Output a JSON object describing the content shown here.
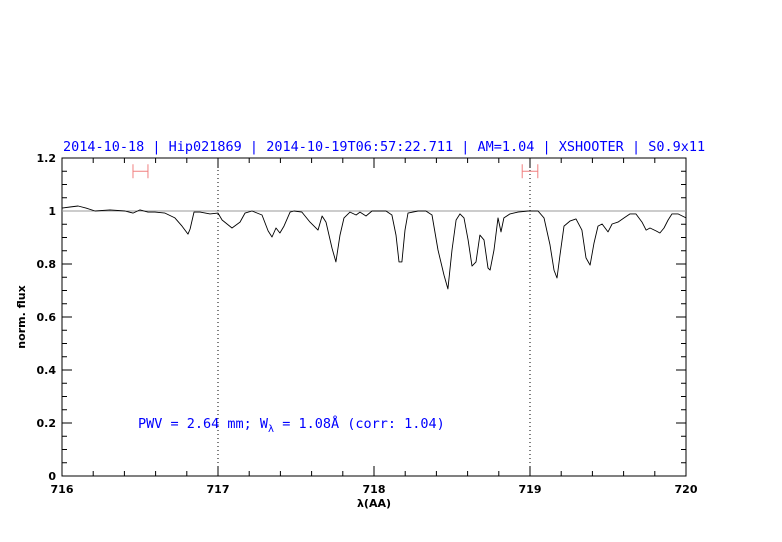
{
  "chart_data": {
    "type": "line",
    "title": "2014-10-18 | Hip021869 | 2014-10-19T06:57:22.711 | AM=1.04 | XSHOOTER | S0.9x11",
    "xlabel": "λ(AA)",
    "ylabel": "norm. flux",
    "xlim": [
      716,
      720
    ],
    "ylim": [
      0,
      1.2
    ],
    "xticks": [
      716,
      717,
      718,
      719,
      720
    ],
    "xtick_labels": [
      "716",
      "717",
      "718",
      "719",
      "720"
    ],
    "yticks": [
      0,
      0.2,
      0.4,
      0.6,
      0.8,
      1,
      1.2
    ],
    "ytick_labels": [
      "0",
      "0.2",
      "0.4",
      "0.6",
      "0.8",
      "1",
      "1.2"
    ],
    "grid": false,
    "reference_line": {
      "y": 1.0,
      "color": "#e07070"
    },
    "dotted_verticals": [
      717,
      719
    ],
    "error_bars": [
      {
        "x_from": 716.455,
        "x_to": 716.551,
        "y": 1.15
      },
      {
        "x_from": 718.95,
        "x_to": 719.05,
        "y": 1.15
      }
    ],
    "annotation": {
      "prefix": "PWV = 2.64 mm; W",
      "subscript": "λ",
      "suffix": " = 1.08Å (corr: 1.04)"
    },
    "colors": {
      "spectrum": "#000000",
      "text": "#0000ff",
      "error_bar": "#f08080"
    },
    "series": [
      {
        "x": [
          716.0,
          716.051,
          716.103,
          716.154,
          716.212,
          716.308,
          716.404,
          716.455,
          716.5,
          716.551,
          716.596,
          716.66,
          716.724,
          716.769,
          716.808,
          716.821,
          716.846,
          716.885,
          716.949,
          717.0,
          717.026,
          717.09,
          717.141,
          717.173,
          717.218,
          717.282,
          717.321,
          717.346,
          717.372,
          717.397,
          717.423,
          717.462,
          717.487,
          717.538,
          717.59,
          717.641,
          717.667,
          717.692,
          717.731,
          717.756,
          717.782,
          717.808,
          717.846,
          717.885,
          717.91,
          717.949,
          717.987,
          718.038,
          718.077,
          718.115,
          718.141,
          718.16,
          718.179,
          718.199,
          718.218,
          718.282,
          718.333,
          718.372,
          718.41,
          718.449,
          718.474,
          718.5,
          718.526,
          718.551,
          718.577,
          718.603,
          718.628,
          718.654,
          718.679,
          718.705,
          718.731,
          718.744,
          718.769,
          718.795,
          718.814,
          718.833,
          718.872,
          718.923,
          718.987,
          719.051,
          719.09,
          719.128,
          719.154,
          719.173,
          719.192,
          719.218,
          719.256,
          719.295,
          719.333,
          719.359,
          719.385,
          719.41,
          719.436,
          719.462,
          719.5,
          719.526,
          719.564,
          719.603,
          719.641,
          719.679,
          719.718,
          719.744,
          719.769,
          719.808,
          719.833,
          719.859,
          719.885,
          719.91,
          719.949,
          720.0
        ],
        "y": [
          1.011,
          1.015,
          1.019,
          1.011,
          1.0,
          1.004,
          1.0,
          0.992,
          1.004,
          0.996,
          0.996,
          0.992,
          0.974,
          0.943,
          0.913,
          0.932,
          0.996,
          0.996,
          0.989,
          0.992,
          0.966,
          0.936,
          0.958,
          0.992,
          1.0,
          0.985,
          0.925,
          0.902,
          0.936,
          0.917,
          0.943,
          0.996,
          1.0,
          0.996,
          0.958,
          0.928,
          0.981,
          0.958,
          0.86,
          0.808,
          0.909,
          0.974,
          0.996,
          0.985,
          0.996,
          0.981,
          1.0,
          1.0,
          1.0,
          0.985,
          0.909,
          0.808,
          0.808,
          0.928,
          0.992,
          1.0,
          1.0,
          0.985,
          0.853,
          0.758,
          0.706,
          0.853,
          0.966,
          0.989,
          0.974,
          0.891,
          0.792,
          0.808,
          0.909,
          0.891,
          0.785,
          0.777,
          0.853,
          0.974,
          0.921,
          0.974,
          0.989,
          0.996,
          1.0,
          1.0,
          0.974,
          0.872,
          0.777,
          0.747,
          0.834,
          0.943,
          0.962,
          0.97,
          0.928,
          0.823,
          0.796,
          0.879,
          0.943,
          0.951,
          0.921,
          0.951,
          0.958,
          0.974,
          0.989,
          0.989,
          0.958,
          0.928,
          0.936,
          0.925,
          0.917,
          0.936,
          0.966,
          0.989,
          0.989,
          0.974
        ]
      }
    ]
  }
}
